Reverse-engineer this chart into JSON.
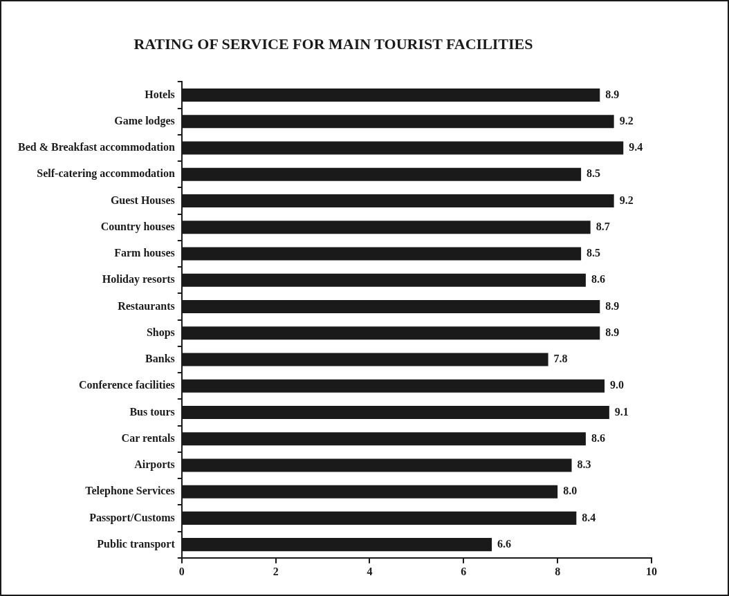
{
  "chart_data": {
    "type": "bar",
    "orientation": "horizontal",
    "title": "RATING OF SERVICE FOR MAIN TOURIST FACILITIES",
    "categories": [
      "Hotels",
      "Game lodges",
      "Bed & Breakfast accommodation",
      "Self-catering accommodation",
      "Guest Houses",
      "Country houses",
      "Farm houses",
      "Holiday resorts",
      "Restaurants",
      "Shops",
      "Banks",
      "Conference facilities",
      "Bus tours",
      "Car rentals",
      "Airports",
      "Telephone Services",
      "Passport/Customs",
      "Public transport"
    ],
    "values": [
      8.9,
      9.2,
      9.4,
      8.5,
      9.2,
      8.7,
      8.5,
      8.6,
      8.9,
      8.9,
      7.8,
      9.0,
      9.1,
      8.6,
      8.3,
      8.0,
      8.4,
      6.6
    ],
    "value_labels": [
      "8.9",
      "9.2",
      "9.4",
      "8.5",
      "9.2",
      "8.7",
      "8.5",
      "8.6",
      "8.9",
      "8.9",
      "7.8",
      "9.0",
      "9.1",
      "8.6",
      "8.3",
      "8.0",
      "8.4",
      "6.6"
    ],
    "color": "#1a1a1a",
    "xlim": [
      0,
      10
    ],
    "xticks": [
      0,
      2,
      4,
      6,
      8,
      10
    ],
    "grid": false,
    "legend": false
  }
}
